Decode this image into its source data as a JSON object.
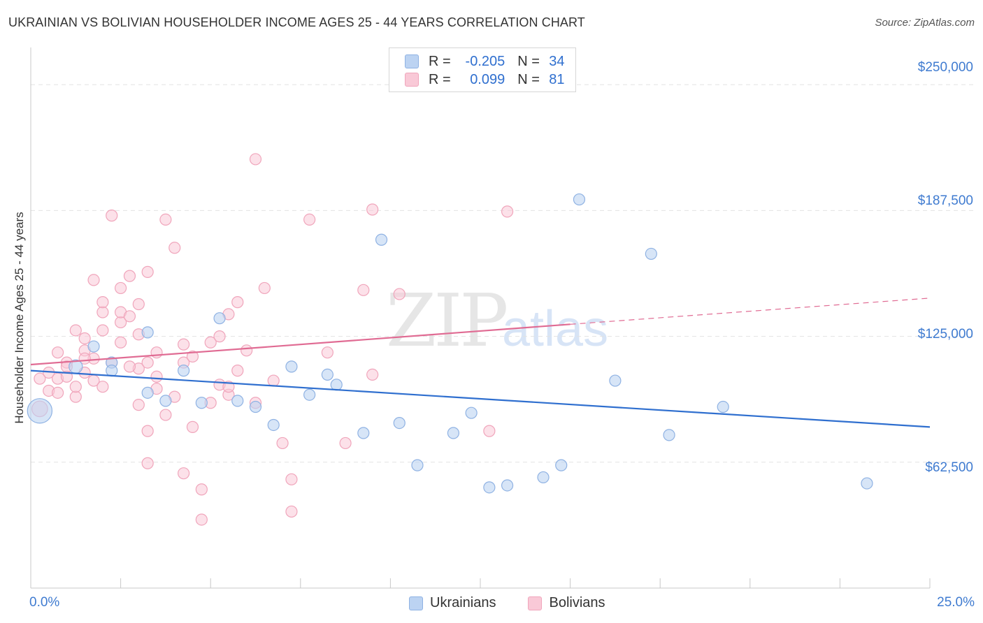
{
  "title": "UKRAINIAN VS BOLIVIAN HOUSEHOLDER INCOME AGES 25 - 44 YEARS CORRELATION CHART",
  "source": "Source: ZipAtlas.com",
  "watermark": {
    "zip": "ZIP",
    "atlas": "atlas"
  },
  "legend": {
    "rows": [
      {
        "r_label": "R =",
        "r_value": "-0.205",
        "n_label": "N =",
        "n_value": "34"
      },
      {
        "r_label": "R =",
        "r_value": "0.099",
        "n_label": "N =",
        "n_value": "81"
      }
    ]
  },
  "bottom_legend": {
    "ukrainians": "Ukrainians",
    "bolivians": "Bolivians"
  },
  "colors": {
    "ukrainians_fill": "#bcd3f2",
    "ukrainians_stroke": "#8fb2e3",
    "ukrainians_line": "#2f6fcf",
    "bolivians_fill": "#f9c9d7",
    "bolivians_stroke": "#f0a5bb",
    "bolivians_line": "#e06b93",
    "grid": "#e2e2e2",
    "axis_text": "#3f7bd0"
  },
  "chart_data": {
    "type": "scatter",
    "title": "UKRAINIAN VS BOLIVIAN HOUSEHOLDER INCOME AGES 25 - 44 YEARS CORRELATION CHART",
    "xlabel": "",
    "ylabel": "Householder Income Ages 25 - 44 years",
    "xlim": [
      0,
      25
    ],
    "ylim": [
      0,
      265000
    ],
    "x_tick_labels": [
      "0.0%",
      "25.0%"
    ],
    "y_ticks": [
      62500,
      125000,
      187500,
      250000
    ],
    "y_tick_labels": [
      "$62,500",
      "$125,000",
      "$187,500",
      "$250,000"
    ],
    "grid": true,
    "legend_position": "top-center",
    "series": [
      {
        "name": "Ukrainians",
        "points": [
          [
            0.25,
            88000,
            2.2
          ],
          [
            1.25,
            110000,
            1.2
          ],
          [
            1.75,
            120000,
            1
          ],
          [
            2.25,
            112000,
            1
          ],
          [
            2.25,
            108000,
            1
          ],
          [
            3.25,
            97000,
            1
          ],
          [
            3.25,
            127000,
            1
          ],
          [
            3.75,
            93000,
            1
          ],
          [
            4.25,
            108000,
            1
          ],
          [
            4.75,
            92000,
            1
          ],
          [
            5.25,
            134000,
            1
          ],
          [
            5.75,
            93000,
            1
          ],
          [
            6.25,
            90000,
            1
          ],
          [
            6.75,
            81000,
            1
          ],
          [
            7.25,
            110000,
            1
          ],
          [
            7.75,
            96000,
            1
          ],
          [
            8.25,
            106000,
            1
          ],
          [
            8.5,
            101000,
            1
          ],
          [
            9.25,
            77000,
            1
          ],
          [
            9.75,
            173000,
            1
          ],
          [
            10.25,
            82000,
            1
          ],
          [
            10.75,
            61000,
            1
          ],
          [
            11.75,
            77000,
            1
          ],
          [
            12.25,
            87000,
            1
          ],
          [
            12.75,
            50000,
            1
          ],
          [
            13.25,
            51000,
            1
          ],
          [
            14.25,
            55000,
            1
          ],
          [
            14.75,
            61000,
            1
          ],
          [
            15.25,
            193000,
            1
          ],
          [
            16.25,
            103000,
            1
          ],
          [
            17.25,
            166000,
            1
          ],
          [
            17.75,
            76000,
            1
          ],
          [
            19.25,
            90000,
            1
          ],
          [
            23.25,
            52000,
            1
          ]
        ],
        "trend": {
          "x": [
            0,
            25
          ],
          "y": [
            108000,
            80000
          ]
        }
      },
      {
        "name": "Bolivians",
        "points": [
          [
            0.25,
            104000,
            1
          ],
          [
            0.25,
            89000,
            1.4
          ],
          [
            0.5,
            98000,
            1
          ],
          [
            0.5,
            107000,
            1
          ],
          [
            0.75,
            104000,
            1
          ],
          [
            0.75,
            117000,
            1
          ],
          [
            1.0,
            112000,
            1
          ],
          [
            1.0,
            105000,
            1
          ],
          [
            1.25,
            128000,
            1
          ],
          [
            1.25,
            95000,
            1
          ],
          [
            1.5,
            118000,
            1
          ],
          [
            1.5,
            124000,
            1
          ],
          [
            1.75,
            114000,
            1
          ],
          [
            1.75,
            103000,
            1
          ],
          [
            1.75,
            153000,
            1
          ],
          [
            2.0,
            137000,
            1
          ],
          [
            2.0,
            128000,
            1
          ],
          [
            2.0,
            142000,
            1
          ],
          [
            2.25,
            112000,
            1
          ],
          [
            2.25,
            185000,
            1
          ],
          [
            2.5,
            132000,
            1
          ],
          [
            2.5,
            137000,
            1
          ],
          [
            2.5,
            122000,
            1
          ],
          [
            2.5,
            149000,
            1
          ],
          [
            2.75,
            135000,
            1
          ],
          [
            2.75,
            155000,
            1
          ],
          [
            3.0,
            91000,
            1
          ],
          [
            3.0,
            141000,
            1
          ],
          [
            3.0,
            109000,
            1
          ],
          [
            3.25,
            157000,
            1
          ],
          [
            3.25,
            112000,
            1
          ],
          [
            3.25,
            78000,
            1
          ],
          [
            3.25,
            62000,
            1
          ],
          [
            3.5,
            117000,
            1
          ],
          [
            3.5,
            99000,
            1
          ],
          [
            3.75,
            183000,
            1
          ],
          [
            3.75,
            86000,
            1
          ],
          [
            4.0,
            169000,
            1
          ],
          [
            4.25,
            112000,
            1
          ],
          [
            4.25,
            121000,
            1
          ],
          [
            4.25,
            57000,
            1
          ],
          [
            4.5,
            80000,
            1
          ],
          [
            4.75,
            49000,
            1
          ],
          [
            4.75,
            34000,
            1
          ],
          [
            5.0,
            122000,
            1
          ],
          [
            5.25,
            101000,
            1
          ],
          [
            5.25,
            125000,
            1
          ],
          [
            5.5,
            136000,
            1
          ],
          [
            5.5,
            96000,
            1
          ],
          [
            5.5,
            100000,
            1
          ],
          [
            5.75,
            142000,
            1
          ],
          [
            6.0,
            118000,
            1
          ],
          [
            6.25,
            92000,
            1
          ],
          [
            6.25,
            213000,
            1
          ],
          [
            6.5,
            149000,
            1
          ],
          [
            7.0,
            72000,
            1
          ],
          [
            7.25,
            38000,
            1
          ],
          [
            7.25,
            54000,
            1
          ],
          [
            7.75,
            183000,
            1
          ],
          [
            8.25,
            117000,
            1
          ],
          [
            8.75,
            72000,
            1
          ],
          [
            9.25,
            148000,
            1
          ],
          [
            9.5,
            106000,
            1
          ],
          [
            9.5,
            188000,
            1
          ],
          [
            10.25,
            146000,
            1
          ],
          [
            12.75,
            78000,
            1
          ],
          [
            13.25,
            187000,
            1
          ],
          [
            0.75,
            97000,
            1
          ],
          [
            1.0,
            110000,
            1
          ],
          [
            1.25,
            100000,
            1
          ],
          [
            1.5,
            107000,
            1
          ],
          [
            2.0,
            100000,
            1
          ],
          [
            2.75,
            110000,
            1
          ],
          [
            3.0,
            126000,
            1
          ],
          [
            3.5,
            105000,
            1
          ],
          [
            4.0,
            95000,
            1
          ],
          [
            4.5,
            115000,
            1
          ],
          [
            5.0,
            92000,
            1
          ],
          [
            5.75,
            108000,
            1
          ],
          [
            6.75,
            103000,
            1
          ],
          [
            1.5,
            114000,
            1
          ]
        ],
        "trend": {
          "x": [
            0,
            15
          ],
          "y": [
            111000,
            131000
          ],
          "extended_x": [
            25
          ],
          "extended_y": [
            144000
          ]
        }
      }
    ]
  }
}
